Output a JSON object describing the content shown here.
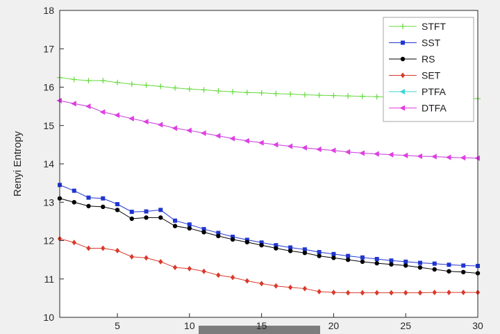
{
  "figure": {
    "background": "#f0f0f0",
    "plot_background": "#ffffff",
    "axis_color": "#262626",
    "tick_label_color": "#262626",
    "legend_background": "#ffffff",
    "legend_border": "#a6a6a6"
  },
  "decorations": {
    "gray_bar": {
      "color": "#7d7d7d"
    }
  },
  "chart_data": {
    "type": "line",
    "title": "",
    "xlabel": "",
    "ylabel": "Renyi Entropy",
    "xlim": [
      1,
      30
    ],
    "ylim": [
      10,
      18
    ],
    "xticks": [
      5,
      10,
      15,
      20,
      25,
      30
    ],
    "yticks": [
      10,
      11,
      12,
      13,
      14,
      15,
      16,
      17,
      18
    ],
    "grid": false,
    "legend_position": "top-right",
    "x": [
      1,
      2,
      3,
      4,
      5,
      6,
      7,
      8,
      9,
      10,
      11,
      12,
      13,
      14,
      15,
      16,
      17,
      18,
      19,
      20,
      21,
      22,
      23,
      24,
      25,
      26,
      27,
      28,
      29,
      30
    ],
    "series": [
      {
        "name": "STFT",
        "color": "#66d93e",
        "marker": "plus",
        "values": [
          16.25,
          16.2,
          16.17,
          16.17,
          16.12,
          16.08,
          16.05,
          16.02,
          15.98,
          15.95,
          15.93,
          15.9,
          15.88,
          15.86,
          15.85,
          15.83,
          15.82,
          15.8,
          15.79,
          15.78,
          15.77,
          15.76,
          15.75,
          15.74,
          15.73,
          15.73,
          15.72,
          15.71,
          15.71,
          15.7
        ]
      },
      {
        "name": "SST",
        "color": "#1f35cf",
        "marker": "square",
        "values": [
          13.45,
          13.3,
          13.12,
          13.1,
          12.95,
          12.75,
          12.76,
          12.8,
          12.52,
          12.42,
          12.3,
          12.2,
          12.1,
          12.02,
          11.95,
          11.88,
          11.82,
          11.77,
          11.7,
          11.65,
          11.6,
          11.56,
          11.52,
          11.48,
          11.45,
          11.42,
          11.4,
          11.37,
          11.35,
          11.34
        ]
      },
      {
        "name": "RS",
        "color": "#000000",
        "marker": "circle",
        "values": [
          13.1,
          13.0,
          12.9,
          12.88,
          12.8,
          12.57,
          12.6,
          12.6,
          12.38,
          12.32,
          12.22,
          12.12,
          12.03,
          11.96,
          11.88,
          11.8,
          11.73,
          11.68,
          11.6,
          11.55,
          11.5,
          11.45,
          11.41,
          11.38,
          11.35,
          11.3,
          11.25,
          11.2,
          11.18,
          11.15
        ]
      },
      {
        "name": "SET",
        "color": "#d9392b",
        "marker": "diamond",
        "values": [
          12.05,
          11.95,
          11.8,
          11.8,
          11.74,
          11.58,
          11.55,
          11.45,
          11.3,
          11.27,
          11.2,
          11.1,
          11.04,
          10.95,
          10.88,
          10.82,
          10.78,
          10.75,
          10.67,
          10.65,
          10.64,
          10.64,
          10.64,
          10.64,
          10.64,
          10.64,
          10.65,
          10.65,
          10.65,
          10.65
        ]
      },
      {
        "name": "PTFA",
        "color": "#3fd4d4",
        "marker": "triangle-left",
        "values": [
          15.65,
          15.57,
          15.5,
          15.35,
          15.27,
          15.18,
          15.1,
          15.02,
          14.93,
          14.87,
          14.8,
          14.73,
          14.66,
          14.6,
          14.55,
          14.5,
          14.46,
          14.42,
          14.38,
          14.35,
          14.31,
          14.28,
          14.26,
          14.24,
          14.22,
          14.2,
          14.19,
          14.17,
          14.16,
          14.15
        ]
      },
      {
        "name": "DTFA",
        "color": "#e53ce2",
        "marker": "triangle-left",
        "values": [
          15.65,
          15.57,
          15.5,
          15.35,
          15.27,
          15.18,
          15.1,
          15.02,
          14.93,
          14.87,
          14.8,
          14.73,
          14.66,
          14.6,
          14.55,
          14.5,
          14.46,
          14.42,
          14.38,
          14.35,
          14.31,
          14.28,
          14.26,
          14.24,
          14.22,
          14.2,
          14.19,
          14.17,
          14.16,
          14.15
        ]
      }
    ],
    "legend_order": [
      "STFT",
      "SST",
      "RS",
      "SET",
      "PTFA",
      "DTFA"
    ]
  }
}
